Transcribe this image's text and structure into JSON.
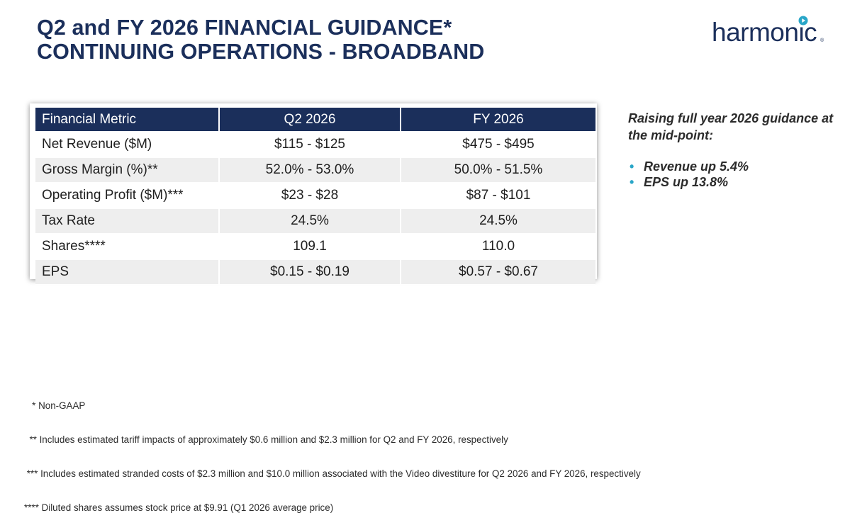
{
  "title": {
    "line1": "Q2 and FY 2026 FINANCIAL GUIDANCE*",
    "line2": "CONTINUING OPERATIONS - BROADBAND"
  },
  "logo": {
    "text": "harmonic",
    "accent_color": "#29a6c8",
    "brand_color": "#1b2f5b"
  },
  "table": {
    "headers": [
      "Financial Metric",
      "Q2 2026",
      "FY 2026"
    ],
    "rows": [
      {
        "metric": "Net Revenue ($M)",
        "q2": "$115 - $125",
        "fy": "$475 - $495"
      },
      {
        "metric": "Gross Margin (%)**",
        "q2": "52.0% - 53.0%",
        "fy": "50.0% - 51.5%"
      },
      {
        "metric": "Operating Profit ($M)***",
        "q2": "$23 - $28",
        "fy": "$87 - $101"
      },
      {
        "metric": "Tax Rate",
        "q2": "24.5%",
        "fy": "24.5%"
      },
      {
        "metric": "Shares****",
        "q2": "109.1",
        "fy": "110.0"
      },
      {
        "metric": "EPS",
        "q2": "$0.15 - $0.19",
        "fy": "$0.57 - $0.67"
      }
    ],
    "header_color": "#1b2f5b"
  },
  "side": {
    "heading": "Raising full year 2026 guidance at the mid-point:",
    "bullets": [
      "Revenue up 5.4%",
      "EPS up 13.8%"
    ],
    "bullet_color": "#29a6c8"
  },
  "footnotes": [
    "   * Non-GAAP",
    "  ** Includes estimated tariff impacts of approximately $0.6 million and $2.3 million for Q2 and FY 2026, respectively",
    " *** Includes estimated stranded costs of $2.3 million and $10.0 million associated with the Video divestiture for Q2 2026 and FY 2026, respectively",
    "**** Diluted shares assumes stock price at $9.91 (Q1 2026 average price)"
  ]
}
